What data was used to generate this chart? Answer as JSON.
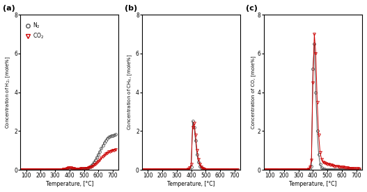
{
  "panel_labels": [
    "(a)",
    "(b)",
    "(c)"
  ],
  "ylabels": [
    "Concentration of H$_2$, [mole%]",
    "Concentration of CH$_4$, [mole%]",
    "Concentration of CO, [mole%]"
  ],
  "xlabel": "Temperature, [°C]",
  "ylim": [
    0,
    8
  ],
  "yticks": [
    0,
    2,
    4,
    6,
    8
  ],
  "xlim": [
    60,
    740
  ],
  "xticks": [
    100,
    200,
    300,
    400,
    500,
    600,
    700
  ],
  "N2_color": "#555555",
  "CO2_color": "#cc0000",
  "H2_N2_x": [
    50,
    60,
    70,
    80,
    90,
    100,
    110,
    120,
    130,
    140,
    150,
    160,
    170,
    180,
    190,
    200,
    210,
    220,
    230,
    240,
    250,
    260,
    270,
    280,
    290,
    300,
    310,
    320,
    330,
    340,
    350,
    360,
    370,
    380,
    390,
    400,
    410,
    420,
    430,
    440,
    450,
    460,
    470,
    480,
    490,
    500,
    510,
    520,
    530,
    540,
    550,
    560,
    570,
    580,
    590,
    600,
    610,
    620,
    630,
    640,
    650,
    660,
    670,
    680,
    690,
    700,
    710,
    720
  ],
  "H2_N2_y": [
    0.01,
    0.01,
    0.01,
    0.01,
    0.01,
    0.01,
    0.01,
    0.01,
    0.01,
    0.01,
    0.01,
    0.01,
    0.01,
    0.01,
    0.01,
    0.01,
    0.01,
    0.01,
    0.01,
    0.01,
    0.01,
    0.01,
    0.01,
    0.01,
    0.01,
    0.01,
    0.01,
    0.01,
    0.01,
    0.02,
    0.02,
    0.02,
    0.02,
    0.03,
    0.03,
    0.05,
    0.04,
    0.03,
    0.03,
    0.03,
    0.03,
    0.03,
    0.03,
    0.04,
    0.04,
    0.05,
    0.07,
    0.09,
    0.12,
    0.16,
    0.22,
    0.3,
    0.4,
    0.52,
    0.65,
    0.8,
    0.95,
    1.1,
    1.25,
    1.4,
    1.52,
    1.62,
    1.68,
    1.72,
    1.75,
    1.78,
    1.8,
    1.82
  ],
  "H2_CO2_x": [
    50,
    60,
    70,
    80,
    90,
    100,
    110,
    120,
    130,
    140,
    150,
    160,
    170,
    180,
    190,
    200,
    210,
    220,
    230,
    240,
    250,
    260,
    270,
    280,
    290,
    300,
    310,
    320,
    330,
    340,
    350,
    360,
    370,
    380,
    390,
    400,
    410,
    420,
    430,
    440,
    450,
    460,
    470,
    480,
    490,
    500,
    510,
    520,
    530,
    540,
    550,
    560,
    570,
    580,
    590,
    600,
    610,
    620,
    630,
    640,
    650,
    660,
    670,
    680,
    690,
    700,
    710,
    720
  ],
  "H2_CO2_y": [
    0.01,
    0.01,
    0.01,
    0.01,
    0.01,
    0.01,
    0.01,
    0.01,
    0.01,
    0.01,
    0.01,
    0.01,
    0.01,
    0.01,
    0.01,
    0.01,
    0.01,
    0.01,
    0.01,
    0.01,
    0.01,
    0.01,
    0.01,
    0.01,
    0.01,
    0.01,
    0.01,
    0.01,
    0.01,
    0.02,
    0.02,
    0.04,
    0.05,
    0.08,
    0.1,
    0.12,
    0.1,
    0.08,
    0.06,
    0.05,
    0.05,
    0.05,
    0.05,
    0.06,
    0.06,
    0.07,
    0.08,
    0.09,
    0.11,
    0.13,
    0.16,
    0.2,
    0.25,
    0.3,
    0.38,
    0.45,
    0.52,
    0.6,
    0.68,
    0.75,
    0.82,
    0.88,
    0.92,
    0.95,
    0.98,
    1.0,
    1.02,
    1.03
  ],
  "CH4_N2_x": [
    50,
    60,
    70,
    80,
    90,
    100,
    110,
    120,
    130,
    140,
    150,
    160,
    170,
    180,
    190,
    200,
    210,
    220,
    230,
    240,
    250,
    260,
    270,
    280,
    290,
    300,
    310,
    320,
    330,
    340,
    350,
    360,
    370,
    380,
    390,
    400,
    410,
    420,
    430,
    440,
    450,
    460,
    470,
    480,
    490,
    500,
    510,
    520,
    530,
    540,
    550,
    560,
    570,
    580,
    590,
    600,
    610,
    620,
    630,
    640,
    650,
    660,
    670,
    680,
    690,
    700,
    710,
    720
  ],
  "CH4_N2_y": [
    0.01,
    0.01,
    0.01,
    0.01,
    0.01,
    0.01,
    0.01,
    0.01,
    0.01,
    0.01,
    0.01,
    0.01,
    0.01,
    0.01,
    0.01,
    0.01,
    0.01,
    0.01,
    0.01,
    0.01,
    0.01,
    0.01,
    0.01,
    0.01,
    0.01,
    0.01,
    0.01,
    0.01,
    0.01,
    0.01,
    0.01,
    0.01,
    0.01,
    0.02,
    0.05,
    0.15,
    2.5,
    2.2,
    1.5,
    0.8,
    0.4,
    0.2,
    0.1,
    0.05,
    0.03,
    0.02,
    0.01,
    0.01,
    0.01,
    0.01,
    0.01,
    0.01,
    0.01,
    0.01,
    0.01,
    0.01,
    0.01,
    0.01,
    0.01,
    0.01,
    0.01,
    0.01,
    0.01,
    0.01,
    0.01,
    0.01,
    0.01,
    0.01
  ],
  "CH4_CO2_x": [
    50,
    60,
    70,
    80,
    90,
    100,
    110,
    120,
    130,
    140,
    150,
    160,
    170,
    180,
    190,
    200,
    210,
    220,
    230,
    240,
    250,
    260,
    270,
    280,
    290,
    300,
    310,
    320,
    330,
    340,
    350,
    360,
    370,
    380,
    390,
    400,
    410,
    420,
    430,
    440,
    450,
    460,
    470,
    480,
    490,
    500,
    510,
    520,
    530,
    540,
    550,
    560,
    570,
    580,
    590,
    600,
    610,
    620,
    630,
    640,
    650,
    660,
    670,
    680,
    690,
    700,
    710,
    720
  ],
  "CH4_CO2_y": [
    0.01,
    0.01,
    0.01,
    0.01,
    0.01,
    0.01,
    0.01,
    0.01,
    0.01,
    0.01,
    0.01,
    0.01,
    0.01,
    0.01,
    0.01,
    0.01,
    0.01,
    0.01,
    0.01,
    0.01,
    0.01,
    0.01,
    0.01,
    0.01,
    0.01,
    0.01,
    0.01,
    0.01,
    0.01,
    0.01,
    0.01,
    0.01,
    0.01,
    0.03,
    0.1,
    0.3,
    2.2,
    2.4,
    1.8,
    1.0,
    0.55,
    0.3,
    0.15,
    0.08,
    0.04,
    0.02,
    0.01,
    0.01,
    0.01,
    0.01,
    0.01,
    0.01,
    0.01,
    0.01,
    0.01,
    0.01,
    0.01,
    0.01,
    0.01,
    0.01,
    0.01,
    0.01,
    0.01,
    0.01,
    0.01,
    0.01,
    0.01,
    0.01
  ],
  "CO_N2_x": [
    50,
    60,
    70,
    80,
    90,
    100,
    110,
    120,
    130,
    140,
    150,
    160,
    170,
    180,
    190,
    200,
    210,
    220,
    230,
    240,
    250,
    260,
    270,
    280,
    290,
    300,
    310,
    320,
    330,
    340,
    350,
    360,
    370,
    380,
    390,
    400,
    410,
    420,
    430,
    440,
    450,
    460,
    470,
    480,
    490,
    500,
    510,
    520,
    530,
    540,
    550,
    560,
    570,
    580,
    590,
    600,
    610,
    620,
    630,
    640,
    650,
    660,
    670,
    680,
    690,
    700,
    710,
    720
  ],
  "CO_N2_y": [
    0.01,
    0.01,
    0.01,
    0.01,
    0.01,
    0.01,
    0.01,
    0.01,
    0.01,
    0.01,
    0.01,
    0.01,
    0.01,
    0.01,
    0.01,
    0.01,
    0.01,
    0.01,
    0.01,
    0.01,
    0.01,
    0.01,
    0.01,
    0.01,
    0.01,
    0.01,
    0.01,
    0.01,
    0.01,
    0.01,
    0.01,
    0.01,
    0.02,
    0.05,
    0.2,
    5.2,
    6.5,
    4.0,
    2.0,
    0.8,
    0.3,
    0.1,
    0.05,
    0.03,
    0.02,
    0.02,
    0.01,
    0.01,
    0.01,
    0.01,
    0.01,
    0.01,
    0.01,
    0.01,
    0.01,
    0.01,
    0.01,
    0.01,
    0.01,
    0.01,
    0.01,
    0.01,
    0.01,
    0.01,
    0.01,
    0.01,
    0.01,
    0.01
  ],
  "CO_CO2_x": [
    50,
    60,
    70,
    80,
    90,
    100,
    110,
    120,
    130,
    140,
    150,
    160,
    170,
    180,
    190,
    200,
    210,
    220,
    230,
    240,
    250,
    260,
    270,
    280,
    290,
    300,
    310,
    320,
    330,
    340,
    350,
    360,
    370,
    380,
    390,
    400,
    410,
    420,
    430,
    440,
    450,
    460,
    470,
    480,
    490,
    500,
    510,
    520,
    530,
    540,
    550,
    560,
    570,
    580,
    590,
    600,
    610,
    620,
    630,
    640,
    650,
    660,
    670,
    680,
    690,
    700,
    710,
    720
  ],
  "CO_CO2_y": [
    0.01,
    0.01,
    0.01,
    0.01,
    0.01,
    0.01,
    0.01,
    0.01,
    0.01,
    0.01,
    0.01,
    0.01,
    0.01,
    0.01,
    0.01,
    0.01,
    0.01,
    0.01,
    0.01,
    0.01,
    0.01,
    0.01,
    0.01,
    0.01,
    0.01,
    0.01,
    0.01,
    0.01,
    0.01,
    0.01,
    0.01,
    0.02,
    0.05,
    0.15,
    0.5,
    4.5,
    7.0,
    6.0,
    3.5,
    1.8,
    0.9,
    0.55,
    0.4,
    0.35,
    0.32,
    0.3,
    0.28,
    0.26,
    0.24,
    0.22,
    0.2,
    0.18,
    0.17,
    0.16,
    0.15,
    0.14,
    0.13,
    0.12,
    0.11,
    0.1,
    0.09,
    0.08,
    0.08,
    0.07,
    0.07,
    0.06,
    0.06,
    0.05
  ]
}
